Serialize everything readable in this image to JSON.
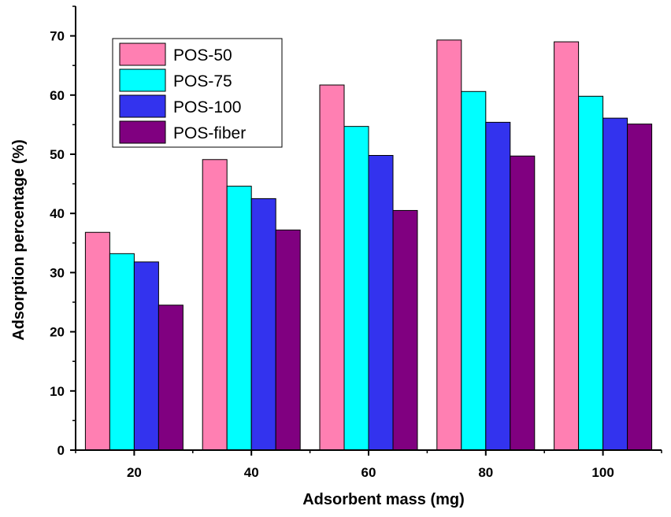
{
  "chart_data": {
    "type": "bar",
    "title": "",
    "xlabel": "Adsorbent mass (mg)",
    "ylabel": "Adsorption percentage (%)",
    "categories": [
      "20",
      "40",
      "60",
      "80",
      "100"
    ],
    "ylim": [
      0,
      75
    ],
    "yticks": [
      0,
      10,
      20,
      30,
      40,
      50,
      60,
      70
    ],
    "grid": false,
    "legend_position": "top-left",
    "series": [
      {
        "name": "POS-50",
        "color": "#ff7fb2",
        "values": [
          36.8,
          49.1,
          61.7,
          69.3,
          69.0
        ]
      },
      {
        "name": "POS-75",
        "color": "#00ffff",
        "values": [
          33.2,
          44.6,
          54.7,
          60.6,
          59.8
        ]
      },
      {
        "name": "POS-100",
        "color": "#3333ee",
        "values": [
          31.8,
          42.5,
          49.8,
          55.4,
          56.1
        ]
      },
      {
        "name": "POS-fiber",
        "color": "#800080",
        "values": [
          24.5,
          37.2,
          40.5,
          49.7,
          55.1
        ]
      }
    ]
  }
}
